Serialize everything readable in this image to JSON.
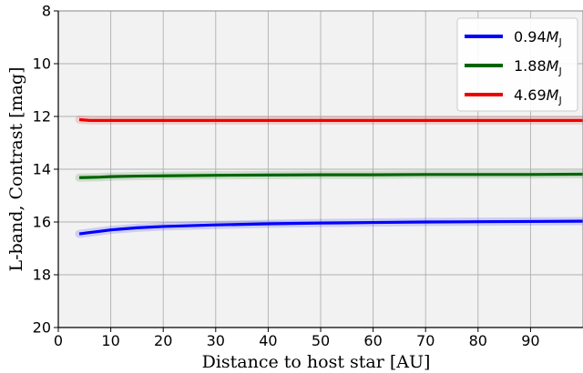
{
  "chart_data": {
    "type": "line",
    "xlabel": "Distance to host star [AU]",
    "ylabel": "L-band, Contrast [mag]",
    "xlim": [
      0,
      100
    ],
    "ylim": [
      20,
      8
    ],
    "y_inverted": true,
    "grid": true,
    "legend_position": "top-right",
    "xticks": [
      "0",
      "10",
      "20",
      "30",
      "40",
      "50",
      "60",
      "70",
      "80",
      "90"
    ],
    "yticks": [
      "8",
      "10",
      "12",
      "14",
      "16",
      "18",
      "20"
    ],
    "series": [
      {
        "name": "0.94M_J",
        "label_number": "0.94",
        "label_symbol": "M",
        "label_subscript": "J",
        "color": "#0000ff",
        "x": [
          4,
          6,
          8,
          10,
          15,
          20,
          30,
          40,
          50,
          60,
          70,
          80,
          90,
          100
        ],
        "y": [
          16.45,
          16.4,
          16.35,
          16.3,
          16.22,
          16.17,
          16.11,
          16.07,
          16.04,
          16.02,
          16.0,
          15.99,
          15.98,
          15.97
        ]
      },
      {
        "name": "1.88M_J",
        "label_number": "1.88",
        "label_symbol": "M",
        "label_subscript": "J",
        "color": "#006400",
        "x": [
          4,
          6,
          8,
          10,
          15,
          20,
          30,
          40,
          50,
          60,
          70,
          80,
          90,
          100
        ],
        "y": [
          14.32,
          14.31,
          14.3,
          14.28,
          14.26,
          14.25,
          14.23,
          14.22,
          14.21,
          14.21,
          14.2,
          14.2,
          14.2,
          14.19
        ]
      },
      {
        "name": "4.69M_J",
        "label_number": "4.69",
        "label_symbol": "M",
        "label_subscript": "J",
        "color": "#ee0000",
        "x": [
          4,
          6,
          8,
          10,
          20,
          30,
          40,
          50,
          60,
          70,
          80,
          90,
          100
        ],
        "y": [
          12.12,
          12.15,
          12.15,
          12.15,
          12.15,
          12.15,
          12.15,
          12.15,
          12.15,
          12.15,
          12.15,
          12.15,
          12.15
        ]
      }
    ]
  },
  "colors": {
    "plot_background": "#f2f2f2",
    "grid": "#b0b0b0",
    "axes": "#000000"
  }
}
